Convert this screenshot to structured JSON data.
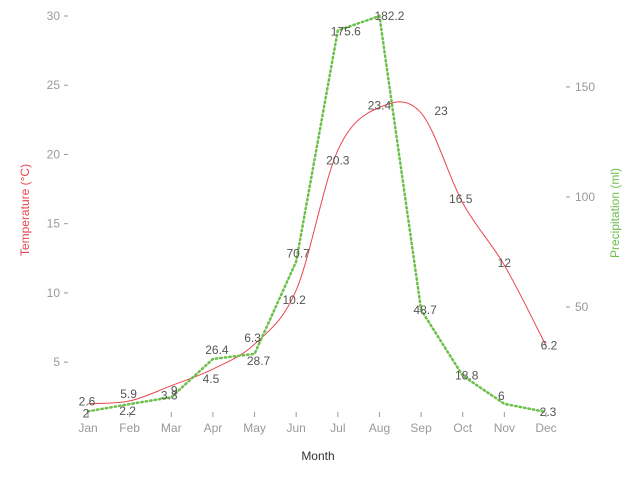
{
  "chart_data": {
    "type": "line",
    "categories": [
      "Jan",
      "Feb",
      "Mar",
      "Apr",
      "May",
      "Jun",
      "Jul",
      "Aug",
      "Sep",
      "Oct",
      "Nov",
      "Dec"
    ],
    "xlabel": "Month",
    "y_left_label": "Temperature (°C)",
    "y_right_label": "Precipitation (ml)",
    "y_left_ticks": [
      5,
      10,
      15,
      20,
      25,
      30
    ],
    "y_right_ticks": [
      50,
      100,
      150
    ],
    "y_left_range": [
      1.4,
      30
    ],
    "y_right_range": [
      2.3,
      182.2
    ],
    "grid": false,
    "series": [
      {
        "name": "Temperature",
        "axis": "left",
        "color": "#e8474f",
        "style": "solid-smooth",
        "values": [
          2,
          2.2,
          3.3,
          4.5,
          6.3,
          10.2,
          20.3,
          23.4,
          23,
          16.5,
          12,
          6.2
        ],
        "labels": [
          "2",
          "2.2",
          "3.3",
          "4.5",
          "6.3",
          "10.2",
          "20.3",
          "23.4",
          "23",
          "16.5",
          "12",
          "6.2"
        ]
      },
      {
        "name": "Precipitation",
        "axis": "right",
        "color": "#6cc04a",
        "style": "dotted",
        "values": [
          2.6,
          5.9,
          9,
          26.4,
          28.7,
          70.7,
          175.6,
          182.2,
          48.7,
          18.8,
          6,
          2.3
        ],
        "labels": [
          "2.6",
          "5.9",
          "9",
          "26.4",
          "28.7",
          "70.7",
          "175.6",
          "182.2",
          "48.7",
          "18.8",
          "6",
          "2.3"
        ]
      }
    ]
  }
}
